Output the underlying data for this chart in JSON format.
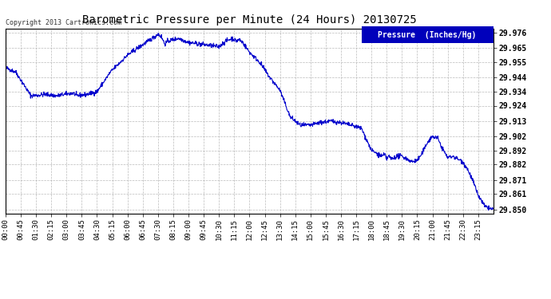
{
  "title": "Barometric Pressure per Minute (24 Hours) 20130725",
  "copyright": "Copyright 2013 Cartronics.com",
  "legend_label": "Pressure  (Inches/Hg)",
  "ylabel_values": [
    29.976,
    29.965,
    29.955,
    29.944,
    29.934,
    29.924,
    29.913,
    29.902,
    29.892,
    29.882,
    29.871,
    29.861,
    29.85
  ],
  "ymin": 29.847,
  "ymax": 29.979,
  "line_color": "#0000cc",
  "background_color": "#ffffff",
  "grid_color": "#aaaaaa",
  "title_color": "#000000",
  "legend_bg": "#0000bb",
  "legend_text_color": "#ffffff",
  "x_tick_labels": [
    "00:00",
    "00:45",
    "01:30",
    "02:15",
    "03:00",
    "03:45",
    "04:30",
    "05:15",
    "06:00",
    "06:45",
    "07:30",
    "08:15",
    "09:00",
    "09:45",
    "10:30",
    "11:15",
    "12:00",
    "12:45",
    "13:30",
    "14:15",
    "15:00",
    "15:45",
    "16:30",
    "17:15",
    "18:00",
    "18:45",
    "19:30",
    "20:15",
    "21:00",
    "21:45",
    "22:30",
    "23:15"
  ],
  "keypoints": [
    [
      0,
      29.951
    ],
    [
      30,
      29.948
    ],
    [
      75,
      29.931
    ],
    [
      120,
      29.932
    ],
    [
      150,
      29.931
    ],
    [
      200,
      29.933
    ],
    [
      210,
      29.931
    ],
    [
      240,
      29.932
    ],
    [
      270,
      29.934
    ],
    [
      310,
      29.948
    ],
    [
      360,
      29.96
    ],
    [
      390,
      29.965
    ],
    [
      440,
      29.973
    ],
    [
      450,
      29.975
    ],
    [
      460,
      29.973
    ],
    [
      470,
      29.968
    ],
    [
      480,
      29.97
    ],
    [
      510,
      29.972
    ],
    [
      540,
      29.969
    ],
    [
      570,
      29.968
    ],
    [
      600,
      29.967
    ],
    [
      630,
      29.966
    ],
    [
      650,
      29.97
    ],
    [
      660,
      29.971
    ],
    [
      670,
      29.972
    ],
    [
      680,
      29.97
    ],
    [
      690,
      29.971
    ],
    [
      700,
      29.969
    ],
    [
      720,
      29.962
    ],
    [
      750,
      29.955
    ],
    [
      780,
      29.944
    ],
    [
      810,
      29.935
    ],
    [
      840,
      29.916
    ],
    [
      855,
      29.913
    ],
    [
      870,
      29.91
    ],
    [
      900,
      29.91
    ],
    [
      930,
      29.912
    ],
    [
      960,
      29.913
    ],
    [
      990,
      29.912
    ],
    [
      1020,
      29.91
    ],
    [
      1050,
      29.908
    ],
    [
      1080,
      29.892
    ],
    [
      1110,
      29.888
    ],
    [
      1120,
      29.889
    ],
    [
      1125,
      29.886
    ],
    [
      1130,
      29.888
    ],
    [
      1140,
      29.886
    ],
    [
      1155,
      29.888
    ],
    [
      1170,
      29.888
    ],
    [
      1185,
      29.886
    ],
    [
      1200,
      29.884
    ],
    [
      1215,
      29.885
    ],
    [
      1230,
      29.89
    ],
    [
      1245,
      29.898
    ],
    [
      1260,
      29.902
    ],
    [
      1275,
      29.901
    ],
    [
      1290,
      29.893
    ],
    [
      1305,
      29.887
    ],
    [
      1320,
      29.888
    ],
    [
      1335,
      29.886
    ],
    [
      1350,
      29.884
    ],
    [
      1365,
      29.878
    ],
    [
      1380,
      29.87
    ],
    [
      1395,
      29.86
    ],
    [
      1415,
      29.852
    ],
    [
      1439,
      29.85
    ]
  ],
  "noise_seed": 42,
  "noise_std": 0.0008
}
